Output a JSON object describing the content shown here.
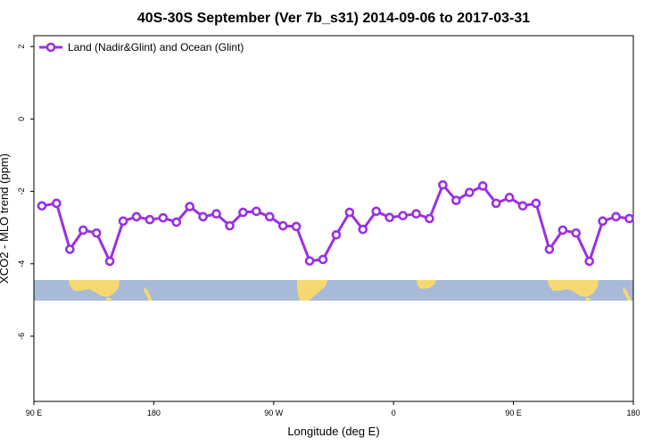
{
  "chart_data": {
    "type": "line",
    "title": "40S-30S September (Ver 7b_s31)   2014-09-06 to 2017-03-31",
    "xlabel": "Longitude (deg E)",
    "ylabel": "XCO2 - MLO trend (ppm)",
    "x_ticks": [
      {
        "value": 90,
        "label": "90 E"
      },
      {
        "value": 180,
        "label": "180"
      },
      {
        "value": 270,
        "label": "90 W"
      },
      {
        "value": 360,
        "label": "0"
      },
      {
        "value": 450,
        "label": "90 E"
      },
      {
        "value": 540,
        "label": "180"
      }
    ],
    "y_ticks": [
      {
        "value": 2,
        "label": "2"
      },
      {
        "value": 0,
        "label": "0"
      },
      {
        "value": -2,
        "label": "-2"
      },
      {
        "value": -4,
        "label": "-4"
      },
      {
        "value": -6,
        "label": "-6"
      }
    ],
    "xlim": [
      90,
      540
    ],
    "ylim": [
      -7.8,
      2.3
    ],
    "grid": false,
    "legend_position": "top-left",
    "series": [
      {
        "name": "Land (Nadir&Glint) and Ocean (Glint)",
        "color": "#9b30e0",
        "x": [
          96,
          107,
          117,
          127,
          137,
          147,
          157,
          167,
          177,
          187,
          197,
          207,
          217,
          227,
          237,
          247,
          257,
          267,
          277,
          287,
          297,
          307,
          317,
          327,
          337,
          347,
          357,
          367,
          377,
          387,
          397,
          407,
          417,
          427,
          437,
          447,
          457,
          467,
          477,
          487,
          497,
          507,
          517,
          527,
          537
        ],
        "y": [
          -2.4,
          -2.33,
          -3.6,
          -3.07,
          -3.15,
          -3.93,
          -2.82,
          -2.7,
          -2.78,
          -2.73,
          -2.85,
          -2.42,
          -2.7,
          -2.62,
          -2.95,
          -2.58,
          -2.55,
          -2.7,
          -2.95,
          -2.97,
          -3.92,
          -3.88,
          -3.2,
          -2.58,
          -3.05,
          -2.55,
          -2.72,
          -2.67,
          -2.62,
          -2.75,
          -1.82,
          -2.25,
          -2.03,
          -1.85,
          -2.33,
          -2.17,
          -2.4,
          -2.33,
          -3.6,
          -3.07,
          -3.15,
          -3.93,
          -2.82,
          -2.7,
          -2.75
        ]
      }
    ],
    "map_strip": {
      "ocean_color": "#a8bad8",
      "land_color": "#f6d872"
    }
  }
}
